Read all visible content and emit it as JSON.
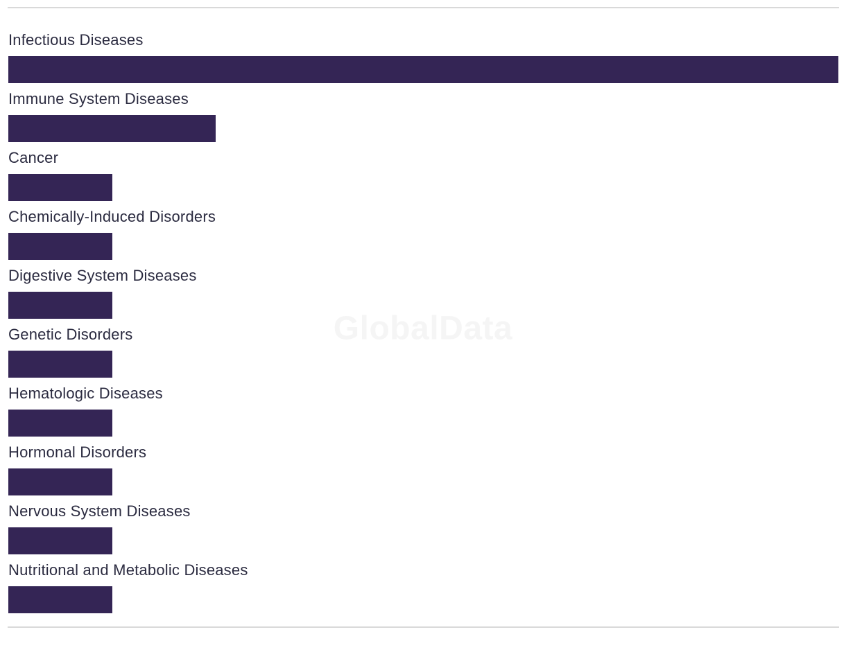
{
  "watermark": {
    "text": "GlobalData"
  },
  "colors": {
    "background": "#ffffff",
    "bar": "#342555",
    "label_text": "#2b2b40",
    "divider": "#d9d9d9",
    "watermark_text": "#f5f5f5"
  },
  "chart_data": {
    "type": "bar",
    "orientation": "horizontal",
    "title": "",
    "xlabel": "",
    "ylabel": "",
    "categories": [
      "Infectious Diseases",
      "Immune System Diseases",
      "Cancer",
      "Chemically-Induced Disorders",
      "Digestive System Diseases",
      "Genetic Disorders",
      "Hematologic Diseases",
      "Hormonal Disorders",
      "Nervous System Diseases",
      "Nutritional and Metabolic Diseases"
    ],
    "values": [
      8,
      2,
      1,
      1,
      1,
      1,
      1,
      1,
      1,
      1
    ],
    "xlim": [
      0,
      8
    ],
    "grid": false,
    "legend": false,
    "axis_ticks_shown": false,
    "value_labels_shown": false,
    "bar_color": "#342555"
  }
}
